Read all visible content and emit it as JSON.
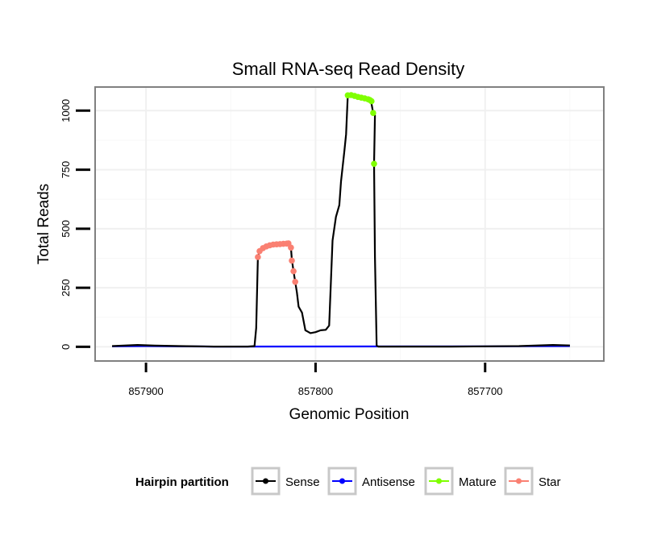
{
  "chart_data": {
    "type": "line",
    "title": "Small RNA-seq Read Density",
    "xlabel": "Genomic Position",
    "ylabel": "Total Reads",
    "x_reversed": true,
    "xlim": [
      857930,
      857630
    ],
    "ylim": [
      -60,
      1100
    ],
    "x_ticks": [
      857900,
      857800,
      857700
    ],
    "x_tick_labels": [
      "857900",
      "857800",
      "857700"
    ],
    "y_ticks": [
      0,
      250,
      500,
      750,
      1000
    ],
    "y_tick_labels": [
      "0",
      "250",
      "500",
      "750",
      "1000"
    ],
    "grid": true,
    "legend": {
      "title": "Hairpin partition",
      "position": "bottom",
      "entries": [
        {
          "name": "Sense",
          "color": "#000000"
        },
        {
          "name": "Antisense",
          "color": "#0000FF"
        },
        {
          "name": "Mature",
          "color": "#7FFF00"
        },
        {
          "name": "Star",
          "color": "#FA8072"
        }
      ]
    },
    "series": [
      {
        "name": "Antisense",
        "color": "#0000FF",
        "mode": "line",
        "x": [
          857920,
          857900,
          857860,
          857700,
          857650
        ],
        "y": [
          2,
          3,
          1,
          2,
          3
        ]
      },
      {
        "name": "Sense",
        "color": "#000000",
        "mode": "line",
        "x": [
          857920,
          857905,
          857895,
          857880,
          857860,
          857840,
          857836,
          857835,
          857834,
          857833,
          857831,
          857829,
          857827,
          857825,
          857822,
          857819,
          857817,
          857816,
          857814.5,
          857814,
          857813,
          857812,
          857811,
          857810,
          857808,
          857806,
          857803,
          857800,
          857797,
          857794,
          857792,
          857790,
          857788,
          857786,
          857785,
          857783,
          857782,
          857781,
          857780,
          857778,
          857776,
          857774,
          857772,
          857770,
          857769,
          857768,
          857767,
          857766,
          857765,
          857765.5,
          857765,
          857764,
          857763,
          857750,
          857720,
          857700,
          857680,
          857660,
          857650
        ],
        "y": [
          3,
          8,
          5,
          3,
          1,
          1,
          3,
          80,
          380,
          405,
          418,
          425,
          430,
          433,
          435,
          436,
          437,
          438,
          420,
          370,
          320,
          275,
          230,
          170,
          145,
          70,
          58,
          62,
          70,
          72,
          90,
          450,
          550,
          600,
          700,
          830,
          900,
          1065,
          1066,
          1062,
          1058,
          1055,
          1052,
          1048,
          1045,
          1040,
          1030,
          990,
          980,
          775,
          380,
          5,
          1,
          1,
          1,
          2,
          3,
          8,
          6
        ]
      },
      {
        "name": "Mature",
        "color": "#7FFF00",
        "mode": "points",
        "x": [
          857781,
          857779,
          857777,
          857775,
          857773,
          857771,
          857769,
          857768,
          857767,
          857766,
          857765.5
        ],
        "y": [
          1065,
          1066,
          1062,
          1058,
          1055,
          1052,
          1048,
          1045,
          1040,
          990,
          775
        ]
      },
      {
        "name": "Star",
        "color": "#FA8072",
        "mode": "points",
        "x": [
          857834,
          857833,
          857831,
          857829,
          857827,
          857825,
          857823,
          857821,
          857819,
          857817,
          857816,
          857814.5,
          857814,
          857813,
          857812
        ],
        "y": [
          380,
          405,
          418,
          425,
          430,
          433,
          434,
          435,
          436,
          437,
          438,
          420,
          365,
          320,
          275
        ]
      }
    ]
  }
}
